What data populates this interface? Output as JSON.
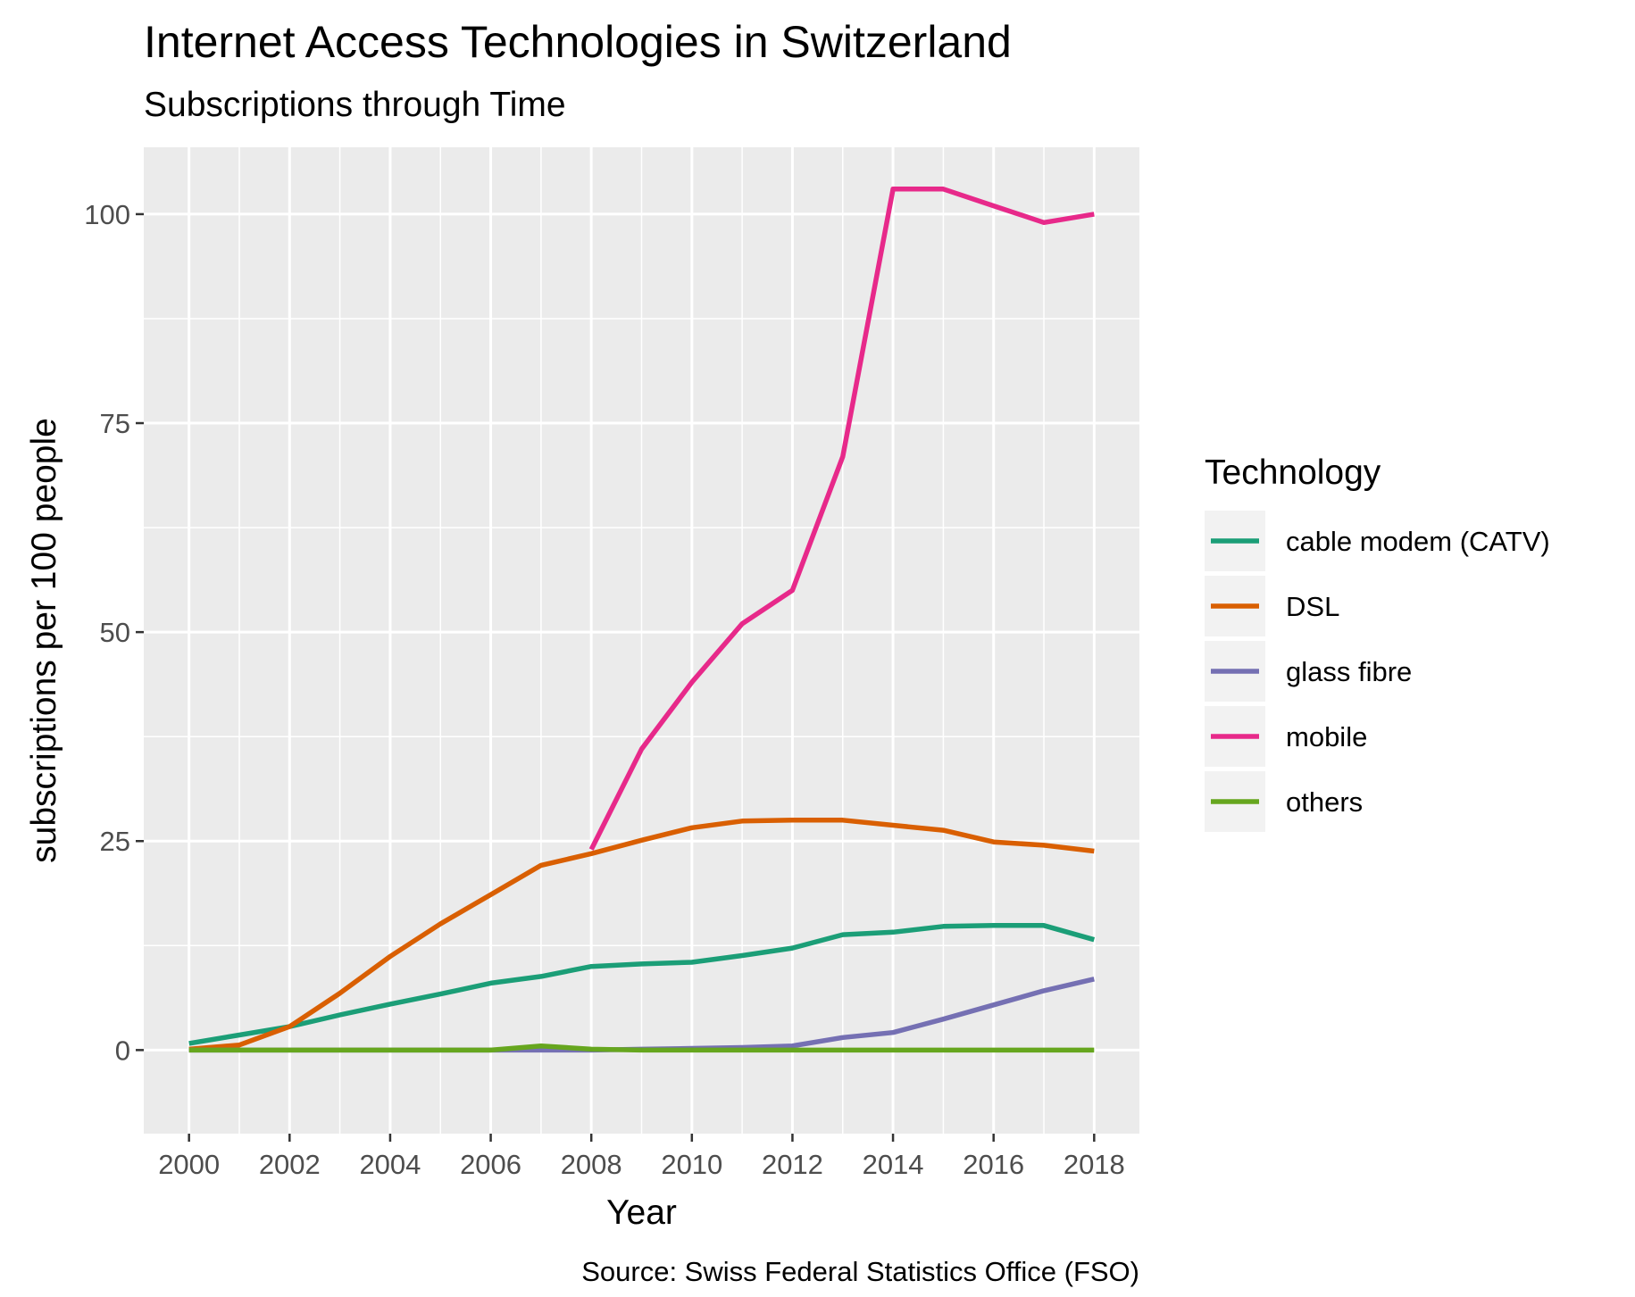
{
  "chart_data": {
    "type": "line",
    "title": "Internet Access Technologies in Switzerland",
    "subtitle": "Subscriptions through Time",
    "xlabel": "Year",
    "ylabel": "subscriptions per 100 people",
    "caption": "Source: Swiss Federal Statistics Office (FSO)",
    "xlim": [
      1999.1,
      2018.9
    ],
    "ylim": [
      -10,
      108
    ],
    "x_ticks": [
      2000,
      2002,
      2004,
      2006,
      2008,
      2010,
      2012,
      2014,
      2016,
      2018
    ],
    "y_ticks": [
      0,
      25,
      50,
      75,
      100
    ],
    "grid": true,
    "legend": {
      "title": "Technology",
      "position": "right"
    },
    "series": [
      {
        "name": "cable modem (CATV)",
        "color": "#1b9e77",
        "x": [
          2000,
          2001,
          2002,
          2003,
          2004,
          2005,
          2006,
          2007,
          2008,
          2009,
          2010,
          2011,
          2012,
          2013,
          2014,
          2015,
          2016,
          2017,
          2018
        ],
        "y": [
          0.8,
          1.8,
          2.8,
          4.2,
          5.5,
          6.7,
          8.0,
          8.8,
          10.0,
          10.3,
          10.5,
          11.3,
          12.2,
          13.8,
          14.1,
          14.8,
          14.9,
          14.9,
          13.2
        ]
      },
      {
        "name": "DSL",
        "color": "#d95f02",
        "x": [
          2000,
          2001,
          2002,
          2003,
          2004,
          2005,
          2006,
          2007,
          2008,
          2009,
          2010,
          2011,
          2012,
          2013,
          2014,
          2015,
          2016,
          2017,
          2018
        ],
        "y": [
          0.1,
          0.6,
          2.8,
          6.8,
          11.2,
          15.1,
          18.6,
          22.1,
          23.5,
          25.1,
          26.6,
          27.4,
          27.5,
          27.5,
          26.9,
          26.3,
          24.9,
          24.5,
          23.8
        ]
      },
      {
        "name": "glass fibre",
        "color": "#7570b3",
        "x": [
          2000,
          2001,
          2002,
          2003,
          2004,
          2005,
          2006,
          2007,
          2008,
          2009,
          2010,
          2011,
          2012,
          2013,
          2014,
          2015,
          2016,
          2017,
          2018
        ],
        "y": [
          0,
          0,
          0,
          0,
          0,
          0,
          0,
          0,
          0,
          0.1,
          0.2,
          0.3,
          0.5,
          1.5,
          2.1,
          3.7,
          5.4,
          7.1,
          8.5
        ]
      },
      {
        "name": "mobile",
        "color": "#e7298a",
        "x": [
          2008,
          2009,
          2010,
          2011,
          2012,
          2013,
          2014,
          2015,
          2016,
          2017,
          2018
        ],
        "y": [
          24,
          36,
          44,
          51,
          55,
          71,
          103,
          103,
          101,
          99,
          100
        ]
      },
      {
        "name": "others",
        "color": "#66a61e",
        "x": [
          2000,
          2001,
          2002,
          2003,
          2004,
          2005,
          2006,
          2007,
          2008,
          2009,
          2010,
          2011,
          2012,
          2013,
          2014,
          2015,
          2016,
          2017,
          2018
        ],
        "y": [
          0,
          0,
          0,
          0,
          0,
          0,
          0,
          0.5,
          0.1,
          0,
          0,
          0,
          0,
          0,
          0,
          0,
          0,
          0,
          0
        ]
      }
    ]
  }
}
